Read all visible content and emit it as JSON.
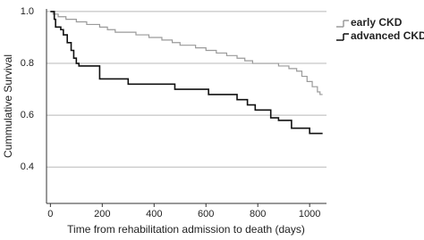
{
  "chart_data": {
    "type": "step",
    "x_label": "Time from rehabilitation admission to death (days)",
    "y_label": "Cummulative Survival",
    "xlim": [
      -15,
      1065
    ],
    "ylim": [
      0.26,
      1.01
    ],
    "xticks": [
      0,
      200,
      400,
      600,
      800,
      1000
    ],
    "yticks": [
      {
        "value": 0.4,
        "label": "0.4"
      },
      {
        "value": 0.6,
        "label": "0.6"
      },
      {
        "value": 0.8,
        "label": "0.8"
      },
      {
        "value": 1.0,
        "label": "1.0"
      }
    ],
    "grid": true,
    "series": [
      {
        "name": "early CKD",
        "color": "#9a9a9a",
        "x": [
          0,
          10,
          30,
          60,
          100,
          140,
          190,
          220,
          250,
          330,
          380,
          430,
          470,
          500,
          560,
          600,
          640,
          680,
          720,
          750,
          780,
          880,
          920,
          950,
          970,
          990,
          1010,
          1030,
          1040,
          1050
        ],
        "values": [
          1.0,
          0.99,
          0.98,
          0.97,
          0.96,
          0.95,
          0.94,
          0.93,
          0.92,
          0.91,
          0.9,
          0.89,
          0.88,
          0.87,
          0.86,
          0.85,
          0.84,
          0.83,
          0.82,
          0.81,
          0.8,
          0.79,
          0.78,
          0.77,
          0.75,
          0.73,
          0.71,
          0.69,
          0.68,
          0.68
        ]
      },
      {
        "name": "advanced CKD",
        "color": "#111111",
        "x": [
          0,
          15,
          20,
          40,
          50,
          65,
          80,
          90,
          100,
          110,
          190,
          300,
          480,
          610,
          720,
          760,
          790,
          850,
          880,
          930,
          1000,
          1050
        ],
        "values": [
          1.0,
          0.97,
          0.94,
          0.93,
          0.91,
          0.88,
          0.85,
          0.82,
          0.8,
          0.79,
          0.74,
          0.72,
          0.7,
          0.68,
          0.66,
          0.64,
          0.62,
          0.59,
          0.58,
          0.55,
          0.53,
          0.53
        ]
      }
    ]
  }
}
